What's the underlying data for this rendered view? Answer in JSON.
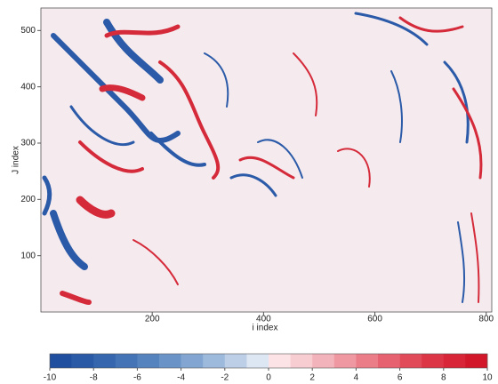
{
  "chart_data": {
    "type": "heatmap",
    "xlabel": "i index",
    "ylabel": "J index",
    "xlim": [
      0,
      810
    ],
    "xticks": [
      200,
      400,
      600,
      800
    ],
    "ylim": [
      0,
      540
    ],
    "yticks": [
      100,
      200,
      300,
      400,
      500
    ],
    "colorbar": {
      "lim": [
        -10,
        10
      ],
      "ticks": [
        -10,
        -8,
        -6,
        -4,
        -2,
        0,
        2,
        4,
        6,
        8,
        10
      ],
      "colors": [
        "#1f4f9e",
        "#2a5aa6",
        "#3566ae",
        "#4474b6",
        "#5583be",
        "#6a94c7",
        "#82a6d1",
        "#9db9dc",
        "#bccfe7",
        "#dde6f3",
        "#fbe3e6",
        "#f7cdd2",
        "#f3b3ba",
        "#ef98a1",
        "#eb7d88",
        "#e66270",
        "#e14a59",
        "#dc3546",
        "#d82537",
        "#d3172a"
      ]
    }
  }
}
